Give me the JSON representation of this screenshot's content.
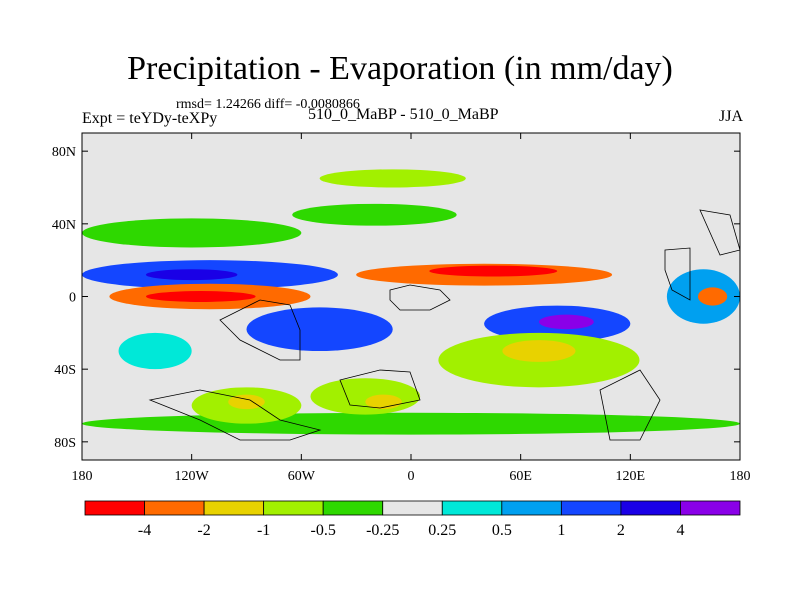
{
  "title": "Precipitation - Evaporation (in mm/day)",
  "stats_line": "rmsd= 1.24266 diff= -0.0080866",
  "expt_label": "Expt = teYDy-teXPy",
  "runs_label": "510_0_MaBP - 510_0_MaBP",
  "season": "JJA",
  "chart_data": {
    "type": "heatmap",
    "title": "Precipitation - Evaporation (in mm/day)",
    "subtitle": "rmsd= 1.24266 diff= -0.0080866",
    "xlabel": "",
    "ylabel": "",
    "xlim": [
      -180,
      180
    ],
    "ylim": [
      -90,
      90
    ],
    "x_ticks": [
      {
        "value": -180,
        "label": "180"
      },
      {
        "value": -120,
        "label": "120W"
      },
      {
        "value": -60,
        "label": "60W"
      },
      {
        "value": 0,
        "label": "0"
      },
      {
        "value": 60,
        "label": "60E"
      },
      {
        "value": 120,
        "label": "120E"
      },
      {
        "value": 180,
        "label": "180"
      }
    ],
    "y_ticks": [
      {
        "value": 80,
        "label": "80N"
      },
      {
        "value": 40,
        "label": "40N"
      },
      {
        "value": 0,
        "label": "0"
      },
      {
        "value": -40,
        "label": "40S"
      },
      {
        "value": -80,
        "label": "80S"
      }
    ],
    "colorbar": {
      "colors": [
        "#ff0000",
        "#ff6a00",
        "#e8d200",
        "#a2f000",
        "#2ed800",
        "#e6e6e6",
        "#00e8d8",
        "#00a0f0",
        "#1446ff",
        "#1a00e6",
        "#8a00e8"
      ],
      "labels": [
        "-4",
        "-2",
        "-1",
        "-0.5",
        "-0.25",
        "0.25",
        "0.5",
        "1",
        "2",
        "4"
      ]
    },
    "regions": [
      {
        "name": "north-pacific-storm-track",
        "lon": -120,
        "lat": 35,
        "rx": 60,
        "ry": 8,
        "class": 4
      },
      {
        "name": "north-atlantic-storm-track",
        "lon": -20,
        "lat": 45,
        "rx": 45,
        "ry": 6,
        "class": 4
      },
      {
        "name": "arctic-band",
        "lon": -10,
        "lat": 65,
        "rx": 40,
        "ry": 5,
        "class": 3
      },
      {
        "name": "itcz-pacific",
        "lon": -110,
        "lat": 12,
        "rx": 70,
        "ry": 8,
        "class": 8
      },
      {
        "name": "itcz-core",
        "lon": -120,
        "lat": 12,
        "rx": 25,
        "ry": 3,
        "class": 9
      },
      {
        "name": "subtropical-dry-pacific",
        "lon": -110,
        "lat": 0,
        "rx": 55,
        "ry": 7,
        "class": 1
      },
      {
        "name": "pacific-dry-core",
        "lon": -115,
        "lat": 0,
        "rx": 30,
        "ry": 3,
        "class": 0
      },
      {
        "name": "africa-india-dry-band",
        "lon": 40,
        "lat": 12,
        "rx": 70,
        "ry": 6,
        "class": 1
      },
      {
        "name": "africa-dry-core",
        "lon": 45,
        "lat": 14,
        "rx": 35,
        "ry": 3,
        "class": 0
      },
      {
        "name": "indian-wet",
        "lon": 80,
        "lat": -15,
        "rx": 40,
        "ry": 10,
        "class": 8
      },
      {
        "name": "indian-wet-core",
        "lon": 85,
        "lat": -14,
        "rx": 15,
        "ry": 4,
        "class": 10
      },
      {
        "name": "south-atlantic-wet",
        "lon": -50,
        "lat": -18,
        "rx": 40,
        "ry": 12,
        "class": 8
      },
      {
        "name": "south-pacific-wet",
        "lon": -140,
        "lat": -30,
        "rx": 20,
        "ry": 10,
        "class": 6
      },
      {
        "name": "south-indian-dry",
        "lon": 70,
        "lat": -35,
        "rx": 55,
        "ry": 15,
        "class": 3
      },
      {
        "name": "south-indian-dry-core",
        "lon": 70,
        "lat": -30,
        "rx": 20,
        "ry": 6,
        "class": 2
      },
      {
        "name": "southern-ocean-band",
        "lon": 0,
        "lat": -70,
        "rx": 180,
        "ry": 6,
        "class": 4
      },
      {
        "name": "south-america-east",
        "lon": -25,
        "lat": -55,
        "rx": 30,
        "ry": 10,
        "class": 3
      },
      {
        "name": "south-america-east-dry",
        "lon": -15,
        "lat": -58,
        "rx": 10,
        "ry": 4,
        "class": 2
      },
      {
        "name": "antarctic-continent",
        "lon": -90,
        "lat": -60,
        "rx": 30,
        "ry": 10,
        "class": 3
      },
      {
        "name": "antarctic-continent-dry",
        "lon": -90,
        "lat": -58,
        "rx": 10,
        "ry": 4,
        "class": 2
      },
      {
        "name": "west-pacific-wet",
        "lon": 160,
        "lat": 0,
        "rx": 20,
        "ry": 15,
        "class": 7
      },
      {
        "name": "date-line-dry",
        "lon": 165,
        "lat": 0,
        "rx": 8,
        "ry": 5,
        "class": 1
      }
    ]
  }
}
